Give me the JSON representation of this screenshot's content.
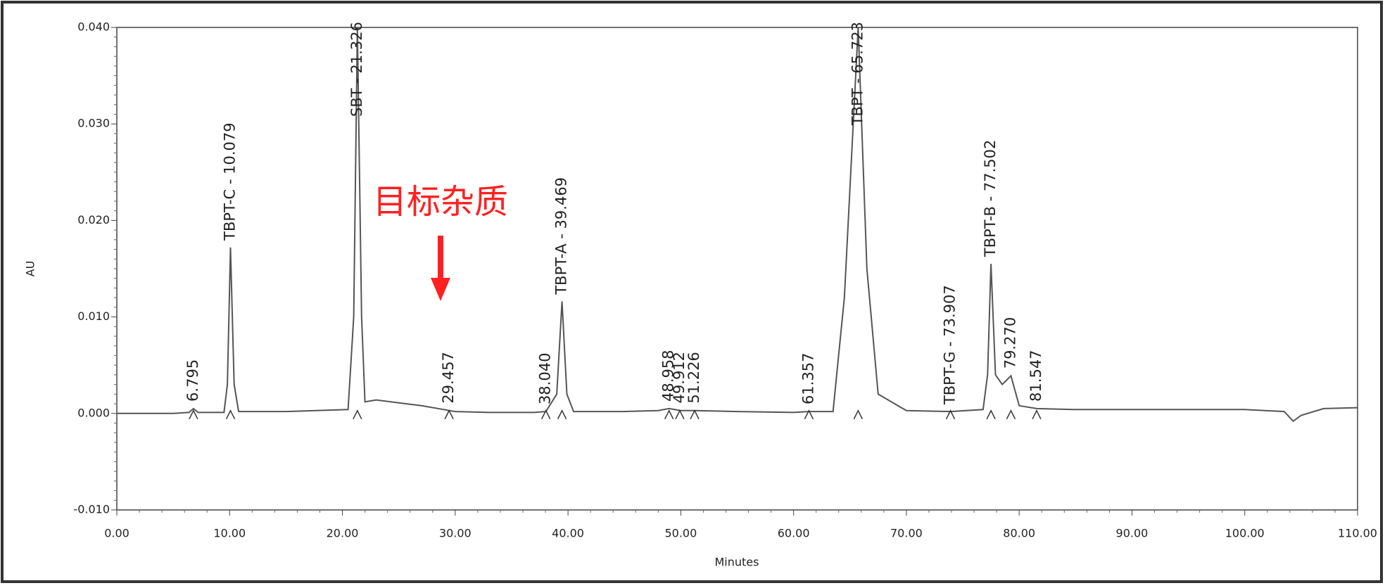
{
  "chart_data": {
    "type": "chromatogram",
    "xlabel": "Minutes",
    "ylabel": "AU",
    "xlim": [
      0,
      110
    ],
    "ylim": [
      -0.01,
      0.04
    ],
    "xticks": [
      {
        "value": 0,
        "label": "0.00"
      },
      {
        "value": 10,
        "label": "10.00"
      },
      {
        "value": 20,
        "label": "20.00"
      },
      {
        "value": 30,
        "label": "30.00"
      },
      {
        "value": 40,
        "label": "40.00"
      },
      {
        "value": 50,
        "label": "50.00"
      },
      {
        "value": 60,
        "label": "60.00"
      },
      {
        "value": 70,
        "label": "70.00"
      },
      {
        "value": 80,
        "label": "80.00"
      },
      {
        "value": 90,
        "label": "90.00"
      },
      {
        "value": 100,
        "label": "100.00"
      },
      {
        "value": 110,
        "label": "110.00"
      }
    ],
    "yticks": [
      {
        "value": -0.01,
        "label": "-0.010"
      },
      {
        "value": 0,
        "label": "0.000"
      },
      {
        "value": 0.01,
        "label": "0.010"
      },
      {
        "value": 0.02,
        "label": "0.020"
      },
      {
        "value": 0.03,
        "label": "0.030"
      },
      {
        "value": 0.04,
        "label": "0.040"
      }
    ],
    "series": [
      {
        "color": "#555555",
        "x": [
          0,
          5,
          6.4,
          6.795,
          7.2,
          9.5,
          9.8,
          10.079,
          10.4,
          10.8,
          15,
          20.5,
          21,
          21.326,
          21.7,
          22,
          23,
          25,
          27,
          29,
          29.457,
          30,
          33,
          37,
          38.04,
          39,
          39.469,
          39.9,
          40.5,
          45,
          48,
          48.958,
          50,
          51.226,
          55,
          60,
          61.357,
          63.5,
          64.5,
          65.723,
          66.5,
          67.5,
          70,
          73.907,
          76.8,
          77.2,
          77.502,
          77.9,
          78.5,
          79.27,
          80,
          81.547,
          85,
          90,
          100,
          103.5,
          104.3,
          105,
          107,
          110
        ],
        "values": [
          0,
          0,
          0.0001,
          0.0005,
          0.0001,
          0.0001,
          0.003,
          0.0172,
          0.003,
          0.0002,
          0.0002,
          0.0004,
          0.01,
          0.04,
          0.01,
          0.0012,
          0.0014,
          0.0011,
          0.0008,
          0.0004,
          0.0003,
          0.0002,
          0.0001,
          0.0001,
          0.0002,
          0.002,
          0.0116,
          0.002,
          0.0002,
          0.0002,
          0.0003,
          0.0005,
          0.0003,
          0.0003,
          0.0002,
          0.0001,
          0.0002,
          0.0002,
          0.012,
          0.04,
          0.015,
          0.002,
          0.0003,
          0.0002,
          0.0004,
          0.004,
          0.0155,
          0.004,
          0.003,
          0.0039,
          0.0008,
          0.0005,
          0.0004,
          0.0004,
          0.0004,
          0.0002,
          -0.0008,
          -0.0002,
          0.0005,
          0.0006
        ]
      }
    ],
    "peaks": [
      {
        "label": "6.795",
        "time": 6.795
      },
      {
        "label": "TBPT-C - 10.079",
        "time": 10.079
      },
      {
        "label": "SBT - 21.326",
        "time": 21.326
      },
      {
        "label": "29.457",
        "time": 29.457
      },
      {
        "label": "38.040",
        "time": 38.04
      },
      {
        "label": "TBPT-A - 39.469",
        "time": 39.469
      },
      {
        "label": "48.958",
        "time": 48.958
      },
      {
        "label": "49.912",
        "time": 49.912
      },
      {
        "label": "51.226",
        "time": 51.226
      },
      {
        "label": "61.357",
        "time": 61.357
      },
      {
        "label": "TBPT - 65.723",
        "time": 65.723
      },
      {
        "label": "TBPT-G - 73.907",
        "time": 73.907
      },
      {
        "label": "TBPT-B - 77.502",
        "time": 77.502
      },
      {
        "label": "79.270",
        "time": 79.27
      },
      {
        "label": "81.547",
        "time": 81.547
      }
    ],
    "annotation": {
      "text": "目标杂质",
      "time": 28.7,
      "color": "#ff2020"
    }
  }
}
